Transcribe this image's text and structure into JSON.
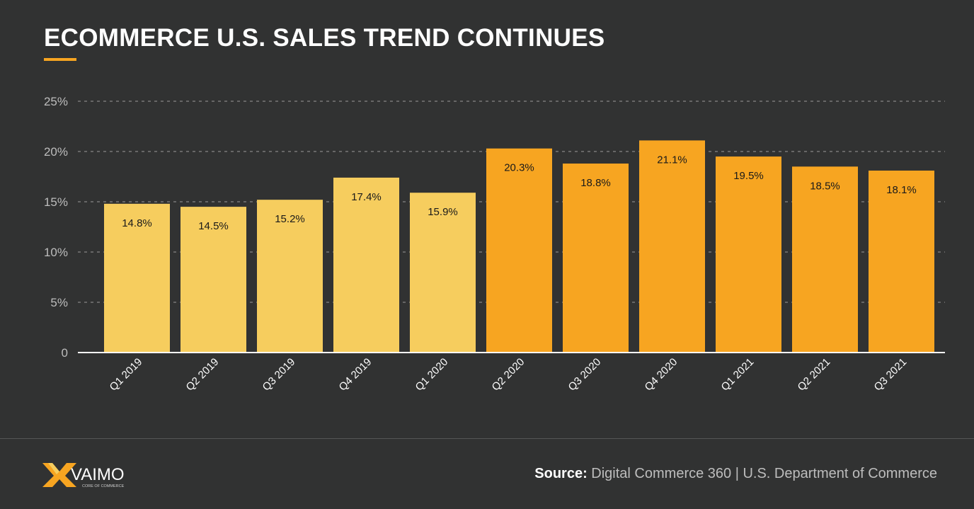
{
  "title": "ECOMMERCE U.S. SALES TREND CONTINUES",
  "colors": {
    "background": "#313232",
    "bar_2019": "#f6cd5e",
    "bar_2020_2021": "#f7a521",
    "accent": "#f7a521"
  },
  "chart_data": {
    "type": "bar",
    "title": "ECOMMERCE U.S. SALES TREND CONTINUES",
    "categories": [
      "Q1 2019",
      "Q2 2019",
      "Q3 2019",
      "Q4 2019",
      "Q1 2020",
      "Q2 2020",
      "Q3 2020",
      "Q4 2020",
      "Q1 2021",
      "Q2 2021",
      "Q3 2021"
    ],
    "values": [
      14.8,
      14.5,
      15.2,
      17.4,
      15.9,
      20.3,
      18.8,
      21.1,
      19.5,
      18.5,
      18.1
    ],
    "data_labels": [
      "14.8%",
      "14.5%",
      "15.2%",
      "17.4%",
      "15.9%",
      "20.3%",
      "18.8%",
      "21.1%",
      "19.5%",
      "18.5%",
      "18.1%"
    ],
    "bar_colors": [
      "#f6cd5e",
      "#f6cd5e",
      "#f6cd5e",
      "#f6cd5e",
      "#f6cd5e",
      "#f7a521",
      "#f7a521",
      "#f7a521",
      "#f7a521",
      "#f7a521",
      "#f7a521"
    ],
    "ylim": [
      0,
      25
    ],
    "yticks": [
      0,
      5,
      10,
      15,
      20,
      25
    ],
    "ytick_labels": [
      "0",
      "5%",
      "10%",
      "15%",
      "20%",
      "25%"
    ],
    "grid": "dashed horizontal",
    "xlabel": "",
    "ylabel": ""
  },
  "footer": {
    "source_label": "Source:",
    "source_text": "Digital Commerce 360 | U.S. Department of Commerce",
    "logo_text": "VAIMO",
    "logo_tagline": "CORE OF COMMERCE"
  }
}
